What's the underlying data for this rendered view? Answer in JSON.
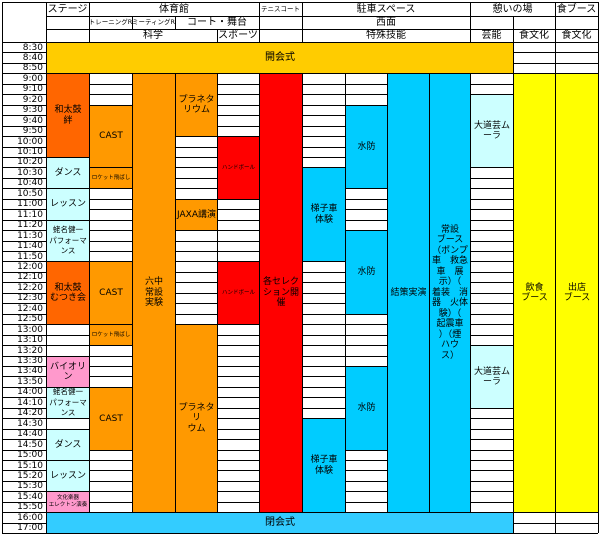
{
  "colors": {
    "orange_dark": "#ff6600",
    "orange": "#ff9900",
    "red": "#ff0000",
    "cyan": "#00ccff",
    "light_cyan": "#ccffff",
    "pink": "#ff99cc",
    "yellow": "#ffff00",
    "gold": "#ffcc00",
    "closing": "#33ccff"
  },
  "header": {
    "row1": [
      "ステージ",
      "体育館",
      "テニスコート",
      "駐車スペース",
      "憩いの場",
      "食ブース"
    ],
    "row2": [
      "トレーニングR",
      "ミーティングR",
      "コート・舞台",
      "西面"
    ],
    "row3": [
      "科学",
      "スポーツ",
      "特殊技能",
      "芸能",
      "食文化",
      "食文化"
    ]
  },
  "time_labels": [
    "8:30",
    "8:40",
    "8:50",
    "9:00",
    "9:10",
    "9:20",
    "9:30",
    "9:40",
    "9:50",
    "10:00",
    "10:10",
    "10:20",
    "10:30",
    "10:40",
    "10:50",
    "11:00",
    "11:10",
    "11:20",
    "11:30",
    "11:40",
    "11:50",
    "12:00",
    "12:10",
    "12:20",
    "12:30",
    "12:40",
    "12:50",
    "13:00",
    "13:10",
    "13:20",
    "13:30",
    "13:40",
    "13:50",
    "14:00",
    "14:10",
    "14:20",
    "14:30",
    "14:40",
    "14:50",
    "15:00",
    "15:10",
    "15:20",
    "15:30",
    "15:40",
    "15:50",
    "16:00",
    "17:00"
  ],
  "events": [
    {
      "name": "開会式",
      "col_start": 1,
      "col_end": 12,
      "slot_start": 0,
      "slot_end": 3,
      "color": "#ffcc00"
    },
    {
      "name": "閉会式",
      "col_start": 1,
      "col_end": 12,
      "slot_start": 45,
      "slot_end": 47,
      "color": "#33ccff"
    },
    {
      "name": "和太鼓　絆",
      "col_start": 1,
      "col_end": 2,
      "slot_start": 3,
      "slot_end": 11,
      "color": "#ff6600"
    },
    {
      "name": "ダンス",
      "col_start": 1,
      "col_end": 2,
      "slot_start": 11,
      "slot_end": 14,
      "color": "#ccffff"
    },
    {
      "name": "レッスン",
      "col_start": 1,
      "col_end": 2,
      "slot_start": 14,
      "slot_end": 17,
      "color": "#ccffff"
    },
    {
      "name": "蛯名健一\nパフォーマ\nンス",
      "col_start": 1,
      "col_end": 2,
      "slot_start": 17,
      "slot_end": 21,
      "color": "#ccffff",
      "small": true
    },
    {
      "name": "和太鼓\nむつき会",
      "col_start": 1,
      "col_end": 2,
      "slot_start": 21,
      "slot_end": 27,
      "color": "#ff6600"
    },
    {
      "name": "バイオリン",
      "col_start": 1,
      "col_end": 2,
      "slot_start": 30,
      "slot_end": 33,
      "color": "#ff99cc"
    },
    {
      "name": "蛯名健一\nパフォーマ\nンス",
      "col_start": 1,
      "col_end": 2,
      "slot_start": 33,
      "slot_end": 36,
      "color": "#ccffff",
      "small": true
    },
    {
      "name": "ダンス",
      "col_start": 1,
      "col_end": 2,
      "slot_start": 37,
      "slot_end": 40,
      "color": "#ccffff"
    },
    {
      "name": "レッスン",
      "col_start": 1,
      "col_end": 2,
      "slot_start": 40,
      "slot_end": 43,
      "color": "#ccffff"
    },
    {
      "name": "文化楽器\nエレクトン演奏",
      "col_start": 1,
      "col_end": 2,
      "slot_start": 43,
      "slot_end": 45,
      "color": "#ff99cc",
      "tiny": true
    },
    {
      "name": "CAST",
      "col_start": 2,
      "col_end": 3,
      "slot_start": 6,
      "slot_end": 12,
      "color": "#ff9900"
    },
    {
      "name": "ロケット飛ばし",
      "col_start": 2,
      "col_end": 3,
      "slot_start": 12,
      "slot_end": 14,
      "color": "#ff9900",
      "tiny": true
    },
    {
      "name": "CAST",
      "col_start": 2,
      "col_end": 3,
      "slot_start": 21,
      "slot_end": 27,
      "color": "#ff9900"
    },
    {
      "name": "ロケット飛ばし",
      "col_start": 2,
      "col_end": 3,
      "slot_start": 27,
      "slot_end": 29,
      "color": "#ff9900",
      "tiny": true
    },
    {
      "name": "CAST",
      "col_start": 2,
      "col_end": 3,
      "slot_start": 33,
      "slot_end": 39,
      "color": "#ff9900"
    },
    {
      "name": "六中\n常設\n実験",
      "col_start": 3,
      "col_end": 4,
      "slot_start": 3,
      "slot_end": 45,
      "color": "#ff9900"
    },
    {
      "name": "プラネタ\nリウム",
      "col_start": 4,
      "col_end": 5,
      "slot_start": 3,
      "slot_end": 9,
      "color": "#ff9900"
    },
    {
      "name": "JAXA講演",
      "col_start": 4,
      "col_end": 5,
      "slot_start": 15,
      "slot_end": 18,
      "color": "#ff9900"
    },
    {
      "name": "プラネタリ\nウム",
      "col_start": 4,
      "col_end": 5,
      "slot_start": 27,
      "slot_end": 45,
      "color": "#ff9900"
    },
    {
      "name": "ハンドボール",
      "col_start": 5,
      "col_end": 6,
      "slot_start": 9,
      "slot_end": 15,
      "color": "#ff0000",
      "tiny": true
    },
    {
      "name": "ハンドボール",
      "col_start": 5,
      "col_end": 6,
      "slot_start": 21,
      "slot_end": 27,
      "color": "#ff0000",
      "tiny": true
    },
    {
      "name": "各セレク\nション開\n催",
      "col_start": 6,
      "col_end": 7,
      "slot_start": 3,
      "slot_end": 45,
      "color": "#ff0000"
    },
    {
      "name": "梯子車\n体験",
      "col_start": 7,
      "col_end": 8,
      "slot_start": 12,
      "slot_end": 21,
      "color": "#00ccff"
    },
    {
      "name": "梯子車\n体験",
      "col_start": 7,
      "col_end": 8,
      "slot_start": 36,
      "slot_end": 45,
      "color": "#00ccff"
    },
    {
      "name": "水防",
      "col_start": 8,
      "col_end": 9,
      "slot_start": 6,
      "slot_end": 14,
      "color": "#00ccff"
    },
    {
      "name": "水防",
      "col_start": 8,
      "col_end": 9,
      "slot_start": 18,
      "slot_end": 26,
      "color": "#00ccff"
    },
    {
      "name": "水防",
      "col_start": 8,
      "col_end": 9,
      "slot_start": 31,
      "slot_end": 39,
      "color": "#00ccff"
    },
    {
      "name": "結策実演",
      "col_start": 9,
      "col_end": 10,
      "slot_start": 3,
      "slot_end": 45,
      "color": "#00ccff"
    },
    {
      "name": "常設\nブース\n（ポンプ\n車　救急\n車　展\n示）（\n着装　消\n器　火体\n験）（\n起震車\n）（煙\nハウ\nス）",
      "col_start": 10,
      "col_end": 11,
      "slot_start": 3,
      "slot_end": 45,
      "color": "#00ccff"
    },
    {
      "name": "大道芸ム\nーラ",
      "col_start": 11,
      "col_end": 12,
      "slot_start": 5,
      "slot_end": 12,
      "color": "#ccffff"
    },
    {
      "name": "大道芸ム\nーラ",
      "col_start": 11,
      "col_end": 12,
      "slot_start": 29,
      "slot_end": 35,
      "color": "#ccffff"
    },
    {
      "name": "飲食\nブース",
      "col_start": 12,
      "col_end": 13,
      "slot_start": 3,
      "slot_end": 45,
      "color": "#ffff00"
    },
    {
      "name": "出店\nブース",
      "col_start": 13,
      "col_end": 14,
      "slot_start": 3,
      "slot_end": 45,
      "color": "#ffff00"
    }
  ]
}
